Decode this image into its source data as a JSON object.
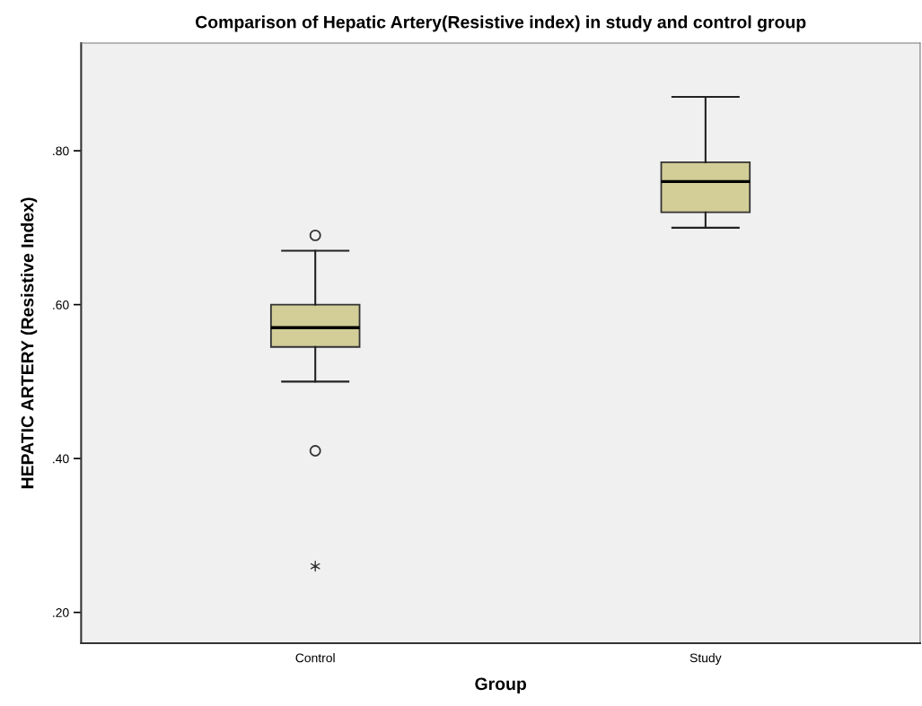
{
  "chart_data": {
    "type": "box",
    "title": "Comparison of Hepatic Artery(Resistive index) in study and control group",
    "xlabel": "Group",
    "ylabel": "HEPATIC ARTERY (Resistive Index)",
    "categories": [
      "Control",
      "Study"
    ],
    "series": [
      {
        "color": "#d3ce97",
        "boxes": [
          {
            "low": 0.5,
            "q1": 0.545,
            "median": 0.57,
            "q3": 0.6,
            "high": 0.67,
            "outliers": [
              0.69,
              0.41
            ]
          },
          {
            "low": 0.7,
            "q1": 0.72,
            "median": 0.76,
            "q3": 0.785,
            "high": 0.87
          }
        ]
      },
      {
        "type": "scatter",
        "marker": "cross",
        "color": "#333333",
        "x": [
          "Control"
        ],
        "values": [
          0.26
        ]
      }
    ],
    "ylim": [
      0.16,
      0.94
    ],
    "yticks": [
      {
        "value": 0.2,
        "label": ".20"
      },
      {
        "value": 0.4,
        "label": ".40"
      },
      {
        "value": 0.6,
        "label": ".60"
      },
      {
        "value": 0.8,
        "label": ".80"
      }
    ],
    "grid": false,
    "legend": false
  }
}
